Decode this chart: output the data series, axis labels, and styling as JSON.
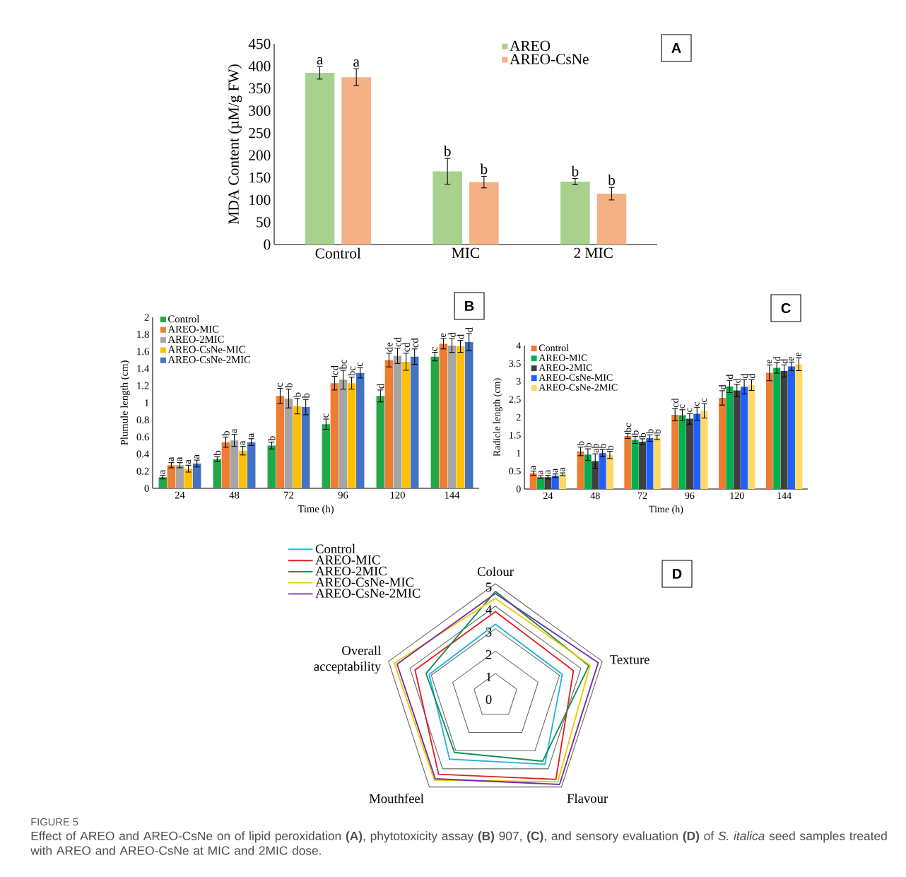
{
  "chart_data": [
    {
      "type": "bar",
      "categories": [
        "Control",
        "MIC",
        "2 MIC"
      ],
      "ylabel": "MDA Content (µM/g FW)",
      "ylim": [
        0,
        450
      ],
      "yticks": [
        0,
        50,
        100,
        150,
        200,
        250,
        300,
        350,
        400,
        450
      ],
      "legend": "top right",
      "annotations": [
        "A"
      ],
      "series": [
        {
          "name": "AREO",
          "color": "#a9d18e",
          "values": [
            385,
            164,
            141
          ],
          "errors": [
            14,
            29,
            7
          ],
          "value_labels": [
            "a",
            "b",
            "b"
          ]
        },
        {
          "name": "AREO-CsNe",
          "color": "#f4b183",
          "values": [
            375,
            140,
            114
          ],
          "errors": [
            19,
            13,
            14
          ],
          "value_labels": [
            "a",
            "b",
            "b"
          ]
        }
      ]
    },
    {
      "type": "bar",
      "categories": [
        "24",
        "48",
        "72",
        "96",
        "120",
        "144"
      ],
      "xlabel": "Time (h)",
      "ylabel": "Plumule length (cm)",
      "ylim": [
        0,
        2
      ],
      "yticks": [
        0,
        0.2,
        0.4,
        0.6,
        0.8,
        1,
        1.2,
        1.4,
        1.6,
        1.8,
        2
      ],
      "legend": "top left",
      "annotations": [
        "B"
      ],
      "series": [
        {
          "name": "Control",
          "color": "#22a84a",
          "values": [
            0.13,
            0.34,
            0.5,
            0.75,
            1.08,
            1.54
          ],
          "errors": [
            0.02,
            0.03,
            0.04,
            0.06,
            0.07,
            0.05
          ],
          "value_labels": [
            "a",
            "b",
            "b",
            "c",
            "d",
            "c"
          ]
        },
        {
          "name": "AREO-MIC",
          "color": "#ed7d31",
          "values": [
            0.27,
            0.54,
            1.08,
            1.23,
            1.5,
            1.69
          ],
          "errors": [
            0.03,
            0.06,
            0.09,
            0.08,
            0.08,
            0.06
          ],
          "value_labels": [
            "a",
            "b",
            "c",
            "cd",
            "de",
            "e"
          ]
        },
        {
          "name": "AREO-2MIC",
          "color": "#a5a5a5",
          "values": [
            0.27,
            0.56,
            1.05,
            1.27,
            1.55,
            1.67
          ],
          "errors": [
            0.03,
            0.07,
            0.11,
            0.11,
            0.09,
            0.08
          ],
          "value_labels": [
            "a",
            "a",
            "b",
            "bc",
            "cd",
            "d"
          ]
        },
        {
          "name": "AREO-CsNe-MIC",
          "color": "#ffc000",
          "values": [
            0.23,
            0.44,
            0.96,
            1.23,
            1.48,
            1.66
          ],
          "errors": [
            0.04,
            0.05,
            0.09,
            0.07,
            0.1,
            0.07
          ],
          "value_labels": [
            "a",
            "a",
            "b",
            "bc",
            "cd",
            "d"
          ]
        },
        {
          "name": "AREO-CsNe-2MIC",
          "color": "#4472c4",
          "values": [
            0.29,
            0.54,
            0.95,
            1.35,
            1.54,
            1.71
          ],
          "errors": [
            0.04,
            0.04,
            0.09,
            0.06,
            0.09,
            0.1
          ],
          "value_labels": [
            "a",
            "a",
            "b",
            "c",
            "cd",
            "d"
          ]
        }
      ]
    },
    {
      "type": "bar",
      "categories": [
        "24",
        "48",
        "72",
        "96",
        "120",
        "144"
      ],
      "xlabel": "Time (h)",
      "ylabel": "Radicle length (cm)",
      "ylim": [
        0,
        4
      ],
      "yticks": [
        0,
        0.5,
        1,
        1.5,
        2,
        2.5,
        3,
        3.5,
        4
      ],
      "legend": "top left",
      "annotations": [
        "C"
      ],
      "series": [
        {
          "name": "Control",
          "color": "#ed7d31",
          "values": [
            0.44,
            1.05,
            1.48,
            2.07,
            2.54,
            3.24
          ],
          "errors": [
            0.06,
            0.12,
            0.07,
            0.17,
            0.2,
            0.22
          ],
          "value_labels": [
            "a",
            "b",
            "bc",
            "cd",
            "d",
            "e"
          ]
        },
        {
          "name": "AREO-MIC",
          "color": "#00b050",
          "values": [
            0.33,
            0.96,
            1.37,
            2.06,
            2.86,
            3.38
          ],
          "errors": [
            0.04,
            0.16,
            0.1,
            0.15,
            0.17,
            0.15
          ],
          "value_labels": [
            "a",
            "b",
            "b",
            "c",
            "d",
            "d"
          ]
        },
        {
          "name": "AREO-2MIC",
          "color": "#404040",
          "values": [
            0.33,
            0.78,
            1.32,
            1.96,
            2.75,
            3.29
          ],
          "errors": [
            0.05,
            0.2,
            0.08,
            0.15,
            0.17,
            0.17
          ],
          "value_labels": [
            "a",
            "ab",
            "b",
            "c",
            "d",
            "d"
          ]
        },
        {
          "name": "AREO-CsNe-MIC",
          "color": "#1f5fff",
          "values": [
            0.37,
            1.0,
            1.42,
            2.1,
            2.85,
            3.42
          ],
          "errors": [
            0.05,
            0.1,
            0.09,
            0.18,
            0.2,
            0.12
          ],
          "value_labels": [
            "a",
            "b",
            "b",
            "c",
            "d",
            "e"
          ]
        },
        {
          "name": "AREO-CsNe-2MIC",
          "color": "#ffd966",
          "values": [
            0.41,
            0.95,
            1.44,
            2.18,
            2.9,
            3.48
          ],
          "errors": [
            0.04,
            0.1,
            0.06,
            0.2,
            0.15,
            0.18
          ],
          "value_labels": [
            "a",
            "b",
            "b",
            "c",
            "d",
            "e"
          ]
        }
      ]
    },
    {
      "type": "radar",
      "categories": [
        "Colour",
        "Texture",
        "Flavour",
        "Mouthfeel",
        "Overall acceptability"
      ],
      "ylim": [
        0,
        5
      ],
      "yticks": [
        0,
        1,
        2,
        3,
        4,
        5
      ],
      "legend": "top left",
      "annotations": [
        "D",
        "FIGURE 5",
        "Effect of AREO and AREO-CsNe on of lipid peroxidation **(A)**, phytotoxicity assay **(B)** 907, **(C)**, and sensory evaluation **(D)** of *S. italica* seed samples treated with AREO and AREO-CsNe at MIC and 2MIC dose."
      ],
      "series": [
        {
          "name": "Control",
          "color": "#22b5e0",
          "values": [
            3.2,
            3.13,
            3.75,
            3.47,
            3.1
          ]
        },
        {
          "name": "AREO-MIC",
          "color": "#e02020",
          "values": [
            3.76,
            3.65,
            4.58,
            4.3,
            3.76
          ]
        },
        {
          "name": "AREO-2MIC",
          "color": "#109050",
          "values": [
            4.66,
            4.37,
            3.58,
            3.1,
            3.25
          ]
        },
        {
          "name": "AREO-CsNe-MIC",
          "color": "#f0c800",
          "values": [
            4.35,
            4.43,
            4.72,
            4.62,
            4.73
          ]
        },
        {
          "name": "AREO-CsNe-2MIC",
          "color": "#7030a0",
          "values": [
            4.57,
            4.81,
            4.86,
            4.55,
            4.6
          ]
        }
      ]
    }
  ]
}
